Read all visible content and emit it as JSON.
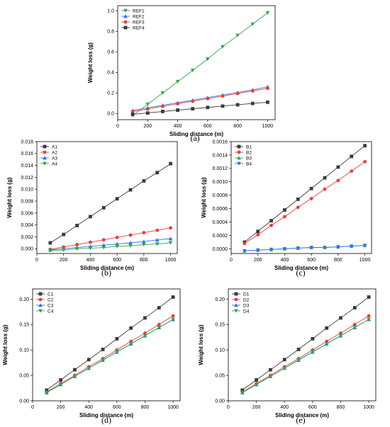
{
  "colors": {
    "black": "#3a3a3a",
    "red": "#ee3b3b",
    "blue": "#2f6ff0",
    "green": "#2ea84a"
  },
  "chart_data": [
    {
      "id": "a",
      "caption": "(a)",
      "type": "line",
      "xlabel": "Sliding distance (m)",
      "ylabel": "Weight loss (g)",
      "xlim": [
        0,
        1050
      ],
      "ylim": [
        -0.06,
        1.05
      ],
      "xticks": [
        0,
        200,
        400,
        600,
        800,
        1000
      ],
      "xtick_labels": [
        "0",
        "200",
        "400",
        "600",
        "800",
        "1000"
      ],
      "yticks": [
        0.0,
        0.2,
        0.4,
        0.6,
        0.8,
        1.0
      ],
      "ytick_labels": [
        "0.0",
        "0.2",
        "0.4",
        "0.6",
        "0.8",
        "1.0"
      ],
      "legend_position": "top-left",
      "x": [
        100,
        200,
        300,
        400,
        500,
        600,
        700,
        800,
        900,
        1000
      ],
      "series": [
        {
          "name": "REF1",
          "marker": "triangle-down",
          "color": "#2ea84a",
          "values": [
            -0.02,
            0.09,
            0.2,
            0.31,
            0.42,
            0.53,
            0.65,
            0.76,
            0.87,
            0.98
          ]
        },
        {
          "name": "REF2",
          "marker": "triangle-up",
          "color": "#2f6ff0",
          "values": [
            0.03,
            0.055,
            0.08,
            0.105,
            0.13,
            0.155,
            0.18,
            0.205,
            0.23,
            0.26
          ]
        },
        {
          "name": "REF3",
          "marker": "circle",
          "color": "#ee3b3b",
          "values": [
            0.02,
            0.045,
            0.07,
            0.095,
            0.12,
            0.145,
            0.17,
            0.195,
            0.22,
            0.245
          ]
        },
        {
          "name": "REF4",
          "marker": "square",
          "color": "#3a3a3a",
          "values": [
            -0.008,
            0.005,
            0.02,
            0.033,
            0.046,
            0.059,
            0.072,
            0.085,
            0.098,
            0.11
          ]
        }
      ]
    },
    {
      "id": "b",
      "caption": "(b)",
      "type": "line",
      "xlabel": "Sliding distance (m)",
      "ylabel": "Weight loss (g)",
      "xlim": [
        0,
        1050
      ],
      "ylim": [
        -0.0008,
        0.018
      ],
      "xticks": [
        0,
        200,
        400,
        600,
        800,
        1000
      ],
      "xtick_labels": [
        "0",
        "200",
        "400",
        "600",
        "800",
        "1000"
      ],
      "yticks": [
        0.0,
        0.002,
        0.004,
        0.006,
        0.008,
        0.01,
        0.012,
        0.014,
        0.016,
        0.018
      ],
      "ytick_labels": [
        "0.000",
        "0.002",
        "0.004",
        "0.006",
        "0.008",
        "0.010",
        "0.012",
        "0.014",
        "0.016",
        "0.018"
      ],
      "legend_position": "top-left",
      "x": [
        100,
        200,
        300,
        400,
        500,
        600,
        700,
        800,
        900,
        1000
      ],
      "series": [
        {
          "name": "A1",
          "marker": "square",
          "color": "#3a3a3a",
          "values": [
            0.001,
            0.0024,
            0.0039,
            0.0054,
            0.0069,
            0.0084,
            0.0099,
            0.0114,
            0.0128,
            0.0143
          ]
        },
        {
          "name": "A2",
          "marker": "circle",
          "color": "#ee3b3b",
          "values": [
            -0.0001,
            0.0003,
            0.0007,
            0.0011,
            0.0015,
            0.0019,
            0.0023,
            0.0027,
            0.0031,
            0.0035
          ]
        },
        {
          "name": "A3",
          "marker": "triangle-up",
          "color": "#2f6ff0",
          "values": [
            -0.0002,
            0.0,
            0.0002,
            0.0004,
            0.0006,
            0.0008,
            0.001,
            0.0012,
            0.0015,
            0.0017
          ]
        },
        {
          "name": "A4",
          "marker": "triangle-down",
          "color": "#2ea84a",
          "values": [
            -0.0003,
            -0.0002,
            0.0,
            0.0001,
            0.0002,
            0.0004,
            0.0005,
            0.0007,
            0.0008,
            0.001
          ]
        }
      ]
    },
    {
      "id": "c",
      "caption": "(c)",
      "type": "line",
      "xlabel": "Sliding distance (m)",
      "ylabel": "Weight loss (g)",
      "xlim": [
        0,
        1050
      ],
      "ylim": [
        -7e-05,
        0.0016
      ],
      "xticks": [
        0,
        200,
        400,
        600,
        800,
        1000
      ],
      "xtick_labels": [
        "0",
        "200",
        "400",
        "600",
        "800",
        "1000"
      ],
      "yticks": [
        0.0,
        0.0002,
        0.0004,
        0.0006,
        0.0008,
        0.001,
        0.0012,
        0.0014,
        0.0016
      ],
      "ytick_labels": [
        "0.0000",
        "0.0002",
        "0.0004",
        "0.0006",
        "0.0008",
        "0.0010",
        "0.0012",
        "0.0014",
        "0.0016"
      ],
      "legend_position": "top-left",
      "x": [
        100,
        200,
        300,
        400,
        500,
        600,
        700,
        800,
        900,
        1000
      ],
      "series": [
        {
          "name": "B1",
          "marker": "square",
          "color": "#3a3a3a",
          "values": [
            0.0001,
            0.00026,
            0.00042,
            0.00058,
            0.00074,
            0.0009,
            0.00106,
            0.00122,
            0.00138,
            0.00154
          ]
        },
        {
          "name": "B2",
          "marker": "circle",
          "color": "#ee3b3b",
          "values": [
            8e-05,
            0.00021,
            0.00035,
            0.00048,
            0.00062,
            0.00075,
            0.00089,
            0.00102,
            0.00116,
            0.0013
          ]
        },
        {
          "name": "B3",
          "marker": "triangle-up",
          "color": "#2ea84a",
          "values": [
            -3e-05,
            -2e-05,
            -1e-05,
            0.0,
            1e-05,
            2e-05,
            2e-05,
            3e-05,
            4e-05,
            5e-05
          ]
        },
        {
          "name": "B4",
          "marker": "triangle-down",
          "color": "#2f6ff0",
          "values": [
            -3e-05,
            -2e-05,
            -1e-05,
            0.0,
            1e-05,
            2e-05,
            2e-05,
            3e-05,
            4e-05,
            5e-05
          ]
        }
      ]
    },
    {
      "id": "d",
      "caption": "(d)",
      "type": "line",
      "xlabel": "Sliding distance (m)",
      "ylabel": "Weight loss (g)",
      "xlim": [
        0,
        1050
      ],
      "ylim": [
        0.0,
        0.22
      ],
      "xticks": [
        0,
        200,
        400,
        600,
        800,
        1000
      ],
      "xtick_labels": [
        "0",
        "200",
        "400",
        "600",
        "800",
        "1000"
      ],
      "yticks": [
        0.0,
        0.05,
        0.1,
        0.15,
        0.2
      ],
      "ytick_labels": [
        "0.00",
        "0.05",
        "0.10",
        "0.15",
        "0.20"
      ],
      "legend_position": "top-left",
      "x": [
        100,
        200,
        300,
        400,
        500,
        600,
        700,
        800,
        900,
        1000
      ],
      "series": [
        {
          "name": "C1",
          "marker": "square",
          "color": "#3a3a3a",
          "values": [
            0.021,
            0.041,
            0.061,
            0.081,
            0.101,
            0.122,
            0.143,
            0.163,
            0.183,
            0.204
          ]
        },
        {
          "name": "C2",
          "marker": "circle",
          "color": "#ee3b3b",
          "values": [
            0.017,
            0.034,
            0.05,
            0.067,
            0.083,
            0.1,
            0.117,
            0.133,
            0.15,
            0.167
          ]
        },
        {
          "name": "C3",
          "marker": "triangle-up",
          "color": "#2f6ff0",
          "values": [
            0.016,
            0.032,
            0.048,
            0.064,
            0.08,
            0.096,
            0.112,
            0.128,
            0.144,
            0.16
          ]
        },
        {
          "name": "C4",
          "marker": "triangle-down",
          "color": "#2ea84a",
          "values": [
            0.016,
            0.032,
            0.048,
            0.064,
            0.08,
            0.096,
            0.112,
            0.128,
            0.144,
            0.16
          ]
        }
      ]
    },
    {
      "id": "e",
      "caption": "(e)",
      "type": "line",
      "xlabel": "Sliding distance (m)",
      "ylabel": "Weight loss (g)",
      "xlim": [
        0,
        1050
      ],
      "ylim": [
        0.0,
        0.22
      ],
      "xticks": [
        0,
        200,
        400,
        600,
        800,
        1000
      ],
      "xtick_labels": [
        "0",
        "200",
        "400",
        "600",
        "800",
        "1000"
      ],
      "yticks": [
        0.0,
        0.05,
        0.1,
        0.15,
        0.2
      ],
      "ytick_labels": [
        "0.00",
        "0.05",
        "0.10",
        "0.15",
        "0.20"
      ],
      "legend_position": "top-left",
      "x": [
        100,
        200,
        300,
        400,
        500,
        600,
        700,
        800,
        900,
        1000
      ],
      "series": [
        {
          "name": "D1",
          "marker": "square",
          "color": "#3a3a3a",
          "values": [
            0.021,
            0.041,
            0.061,
            0.081,
            0.101,
            0.122,
            0.143,
            0.163,
            0.183,
            0.204
          ]
        },
        {
          "name": "D2",
          "marker": "circle",
          "color": "#ee3b3b",
          "values": [
            0.017,
            0.034,
            0.05,
            0.067,
            0.083,
            0.1,
            0.117,
            0.133,
            0.15,
            0.167
          ]
        },
        {
          "name": "D3",
          "marker": "triangle-up",
          "color": "#2f6ff0",
          "values": [
            0.016,
            0.032,
            0.048,
            0.064,
            0.08,
            0.096,
            0.112,
            0.128,
            0.144,
            0.16
          ]
        },
        {
          "name": "D4",
          "marker": "triangle-down",
          "color": "#2ea84a",
          "values": [
            0.016,
            0.032,
            0.048,
            0.064,
            0.08,
            0.096,
            0.112,
            0.128,
            0.144,
            0.16
          ]
        }
      ]
    }
  ]
}
